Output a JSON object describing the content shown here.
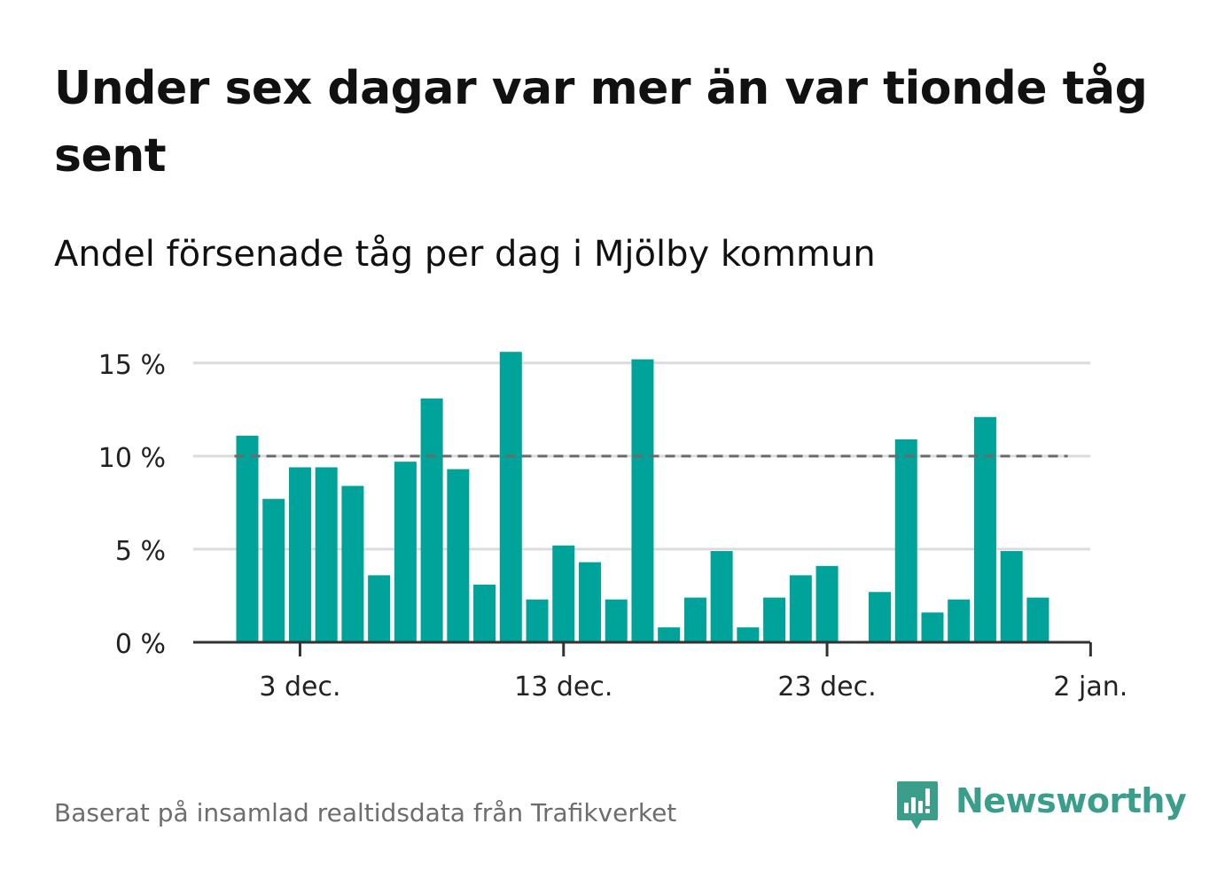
{
  "header": {
    "title": "Under sex dagar var mer än var tionde tåg sent",
    "subtitle": "Andel försenade tåg per dag i Mjölby kommun"
  },
  "footer": {
    "source": "Baserat på insamlad realtidsdata från Trafikverket",
    "brand_name": "Newsworthy"
  },
  "colors": {
    "bar": "#00a39a",
    "reference_line": "#6b6b6b",
    "gridline": "#dcdcdc",
    "axis": "#333333",
    "brand": "#3a9e8b"
  },
  "icons": {
    "brand_logo": "newsworthy-logo-icon"
  },
  "chart_data": {
    "type": "bar",
    "title": "Andel försenade tåg per dag i Mjölby kommun",
    "xlabel": "",
    "ylabel": "",
    "x_type": "date",
    "x_tick_labels": [
      "3 dec.",
      "13 dec.",
      "23 dec.",
      "2 jan."
    ],
    "x_tick_dates": [
      "2021-12-03",
      "2021-12-13",
      "2021-12-23",
      "2022-01-02"
    ],
    "dates": [
      "2021-12-01",
      "2021-12-02",
      "2021-12-03",
      "2021-12-04",
      "2021-12-05",
      "2021-12-06",
      "2021-12-07",
      "2021-12-08",
      "2021-12-09",
      "2021-12-10",
      "2021-12-11",
      "2021-12-12",
      "2021-12-13",
      "2021-12-14",
      "2021-12-15",
      "2021-12-16",
      "2021-12-17",
      "2021-12-18",
      "2021-12-19",
      "2021-12-20",
      "2021-12-21",
      "2021-12-22",
      "2021-12-23",
      "2021-12-24",
      "2021-12-25",
      "2021-12-26",
      "2021-12-27",
      "2021-12-28",
      "2021-12-29",
      "2021-12-30",
      "2021-12-31",
      "2022-01-01"
    ],
    "values": [
      11.1,
      7.7,
      9.4,
      9.4,
      8.4,
      3.6,
      9.7,
      13.1,
      9.3,
      3.1,
      15.6,
      2.3,
      5.2,
      4.3,
      2.3,
      15.2,
      0.8,
      2.4,
      4.9,
      0.8,
      2.4,
      3.6,
      4.1,
      null,
      2.7,
      10.9,
      1.6,
      2.3,
      12.1,
      4.9,
      2.4,
      null
    ],
    "y_unit": "%",
    "y_ticks": [
      0,
      5,
      10,
      15
    ],
    "y_tick_labels": [
      "0 %",
      "5 %",
      "10 %",
      "15 %"
    ],
    "ylim": [
      0,
      15.8
    ],
    "reference_line": {
      "value": 10,
      "style": "dashed"
    },
    "grid": true,
    "legend": "none"
  }
}
